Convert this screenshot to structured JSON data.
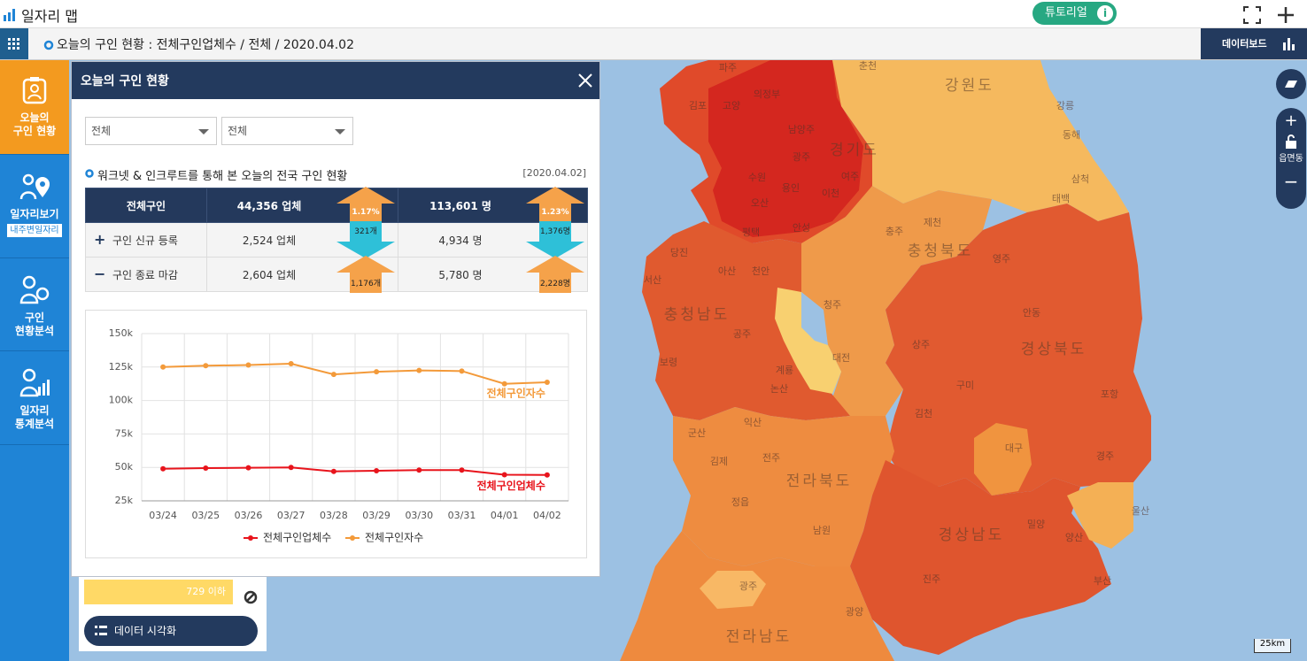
{
  "header": {
    "title": "일자리 맵",
    "tutorial": "튜토리얼"
  },
  "breadcrumb": "오늘의 구인 현황 : 전체구인업체수 / 전체 / 2020.04.02",
  "dashboard_button": "데이터보드",
  "sidebar": [
    {
      "lines": [
        "오늘의",
        "구인 현황"
      ]
    },
    {
      "lines": [
        "일자리보기"
      ],
      "sub": "내주변일자리"
    },
    {
      "lines": [
        "구인",
        "현황분석"
      ]
    },
    {
      "lines": [
        "일자리",
        "통계분석"
      ]
    }
  ],
  "panel": {
    "title": "오늘의 구인 현황",
    "filters": [
      "전체",
      "전체"
    ],
    "section_title": "워크넷 & 인크루트를 통해 본 오늘의 전국 구인 현황",
    "date": "[2020.04.02]",
    "table": {
      "header": {
        "label": "전체구인",
        "companies": "44,356 업체",
        "companies_change": "1.17%",
        "people": "113,601 명",
        "people_change": "1.23%"
      },
      "rows": [
        {
          "sign": "+",
          "label": "구인 신규 등록",
          "companies": "2,524 업체",
          "companies_change": "321개",
          "people": "4,934 명",
          "people_change": "1,376명"
        },
        {
          "sign": "−",
          "label": "구인 종료 마감",
          "companies": "2,604 업체",
          "companies_change": "1,176개",
          "people": "5,780 명",
          "people_change": "2,228명"
        }
      ]
    }
  },
  "chart_data": {
    "type": "line",
    "categories": [
      "03/24",
      "03/25",
      "03/26",
      "03/27",
      "03/28",
      "03/29",
      "03/30",
      "03/31",
      "04/01",
      "04/02"
    ],
    "series": [
      {
        "name": "전체구인업체수",
        "color": "#e8141c",
        "values": [
          49000,
          49500,
          49700,
          50000,
          47000,
          47500,
          48000,
          48000,
          44500,
          44356
        ]
      },
      {
        "name": "전체구인자수",
        "color": "#f39a3a",
        "values": [
          125000,
          126000,
          126500,
          127500,
          119500,
          121500,
          122500,
          122000,
          112500,
          113601
        ]
      }
    ],
    "ylim": [
      25000,
      150000
    ],
    "yticks": [
      {
        "value": 25000,
        "label": "25k"
      },
      {
        "value": 50000,
        "label": "50k"
      },
      {
        "value": 75000,
        "label": "75k"
      },
      {
        "value": 100000,
        "label": "100k"
      },
      {
        "value": 125000,
        "label": "125k"
      },
      {
        "value": 150000,
        "label": "150k"
      }
    ],
    "grid": true
  },
  "legend_box": {
    "range_label": "729 이하",
    "button": "데이터 시각화"
  },
  "map": {
    "region_labels": [
      "강원도",
      "경기도",
      "충청북도",
      "충청남도",
      "경상북도",
      "전라북도",
      "경상남도",
      "전라남도"
    ],
    "labels": [
      "파주",
      "고양",
      "김포",
      "의정부",
      "춘천",
      "남양주",
      "광주",
      "수원",
      "용인",
      "이천",
      "여주",
      "오산",
      "평택",
      "안성",
      "강릉",
      "동해",
      "삼척",
      "태백",
      "제천",
      "충주",
      "영주",
      "당진",
      "아산",
      "천안",
      "서산",
      "청주",
      "안동",
      "공주",
      "대전",
      "상주",
      "보령",
      "계룡",
      "논산",
      "구미",
      "포항",
      "김천",
      "군산",
      "익산",
      "김제",
      "전주",
      "대구",
      "경주",
      "정읍",
      "울산",
      "밀양",
      "양산",
      "남원",
      "진주",
      "부산",
      "광주",
      "광양"
    ],
    "level": "읍면동",
    "scale": "25km"
  }
}
